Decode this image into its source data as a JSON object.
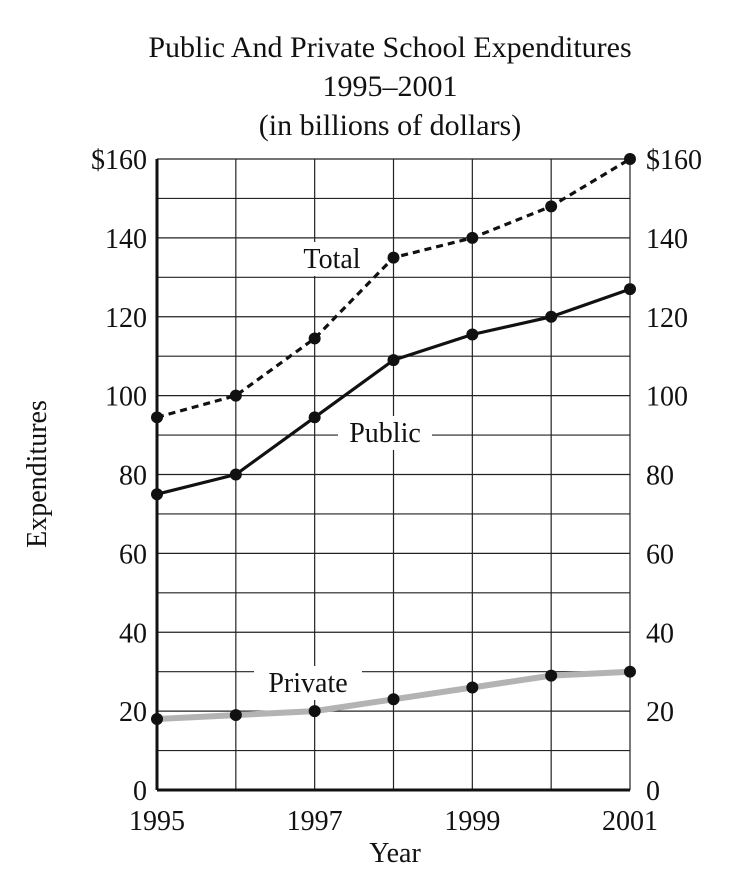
{
  "chart_data": {
    "type": "line",
    "title_lines": [
      "Public And Private School Expenditures",
      "1995–2001",
      "(in billions of dollars)"
    ],
    "xlabel": "Year",
    "ylabel": "Expenditures",
    "x": [
      1995,
      1996,
      1997,
      1998,
      1999,
      2000,
      2001
    ],
    "x_tick_labels": [
      "1995",
      "1997",
      "1999",
      "2001"
    ],
    "x_tick_values": [
      1995,
      1997,
      1999,
      2001
    ],
    "y_tick_labels_left": [
      "0",
      "20",
      "40",
      "60",
      "80",
      "100",
      "120",
      "140",
      "$160"
    ],
    "y_tick_labels_right": [
      "0",
      "20",
      "40",
      "60",
      "80",
      "100",
      "120",
      "140",
      "$160"
    ],
    "y_tick_values": [
      0,
      20,
      40,
      60,
      80,
      100,
      120,
      140,
      160
    ],
    "xlim": [
      1995,
      2001
    ],
    "ylim": [
      0,
      160
    ],
    "grid": true,
    "series": [
      {
        "name": "Total",
        "values": [
          94.5,
          100,
          114.5,
          135,
          140,
          148,
          160
        ],
        "color": "#111111",
        "style": "dashed"
      },
      {
        "name": "Public",
        "values": [
          75,
          80,
          94.5,
          109,
          115.5,
          120,
          127
        ],
        "color": "#111111",
        "style": "solid"
      },
      {
        "name": "Private",
        "values": [
          18,
          19,
          20,
          23,
          26,
          29,
          30
        ],
        "color": "#b3b3b3",
        "style": "solid"
      }
    ]
  }
}
